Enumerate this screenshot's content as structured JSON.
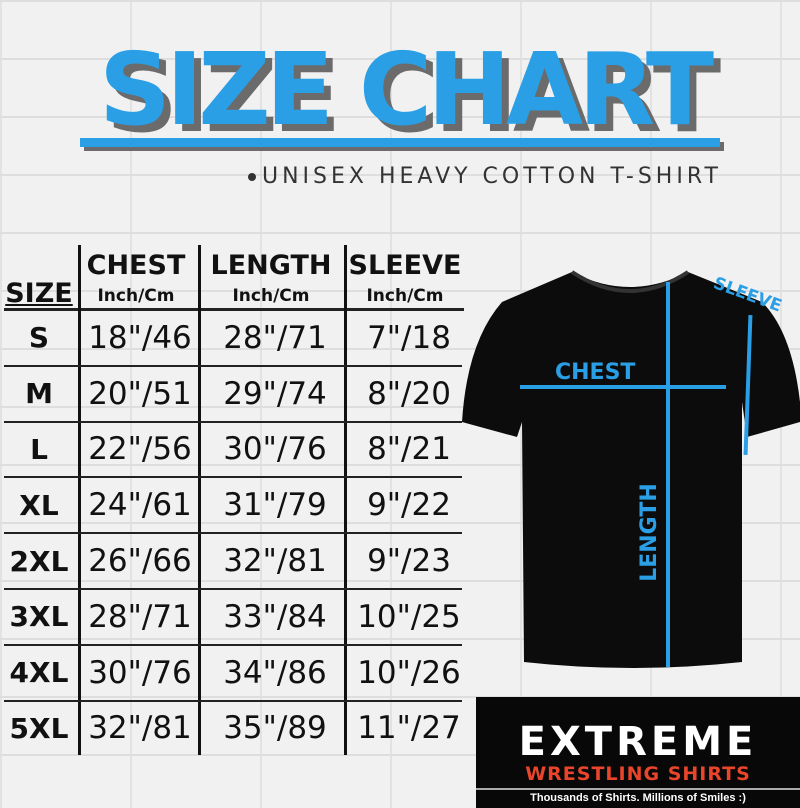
{
  "title": "SIZE CHART",
  "subtitle": "UNISEX HEAVY COTTON T-SHIRT",
  "table": {
    "headers": [
      {
        "label": "SIZE",
        "unit": ""
      },
      {
        "label": "CHEST",
        "unit": "Inch/Cm"
      },
      {
        "label": "LENGTH",
        "unit": "Inch/Cm"
      },
      {
        "label": "SLEEVE",
        "unit": "Inch/Cm"
      }
    ],
    "rows": [
      [
        "S",
        "18\"/46",
        "28\"/71",
        "7\"/18"
      ],
      [
        "M",
        "20\"/51",
        "29\"/74",
        "8\"/20"
      ],
      [
        "L",
        "22\"/56",
        "30\"/76",
        "8\"/21"
      ],
      [
        "XL",
        "24\"/61",
        "31\"/79",
        "9\"/22"
      ],
      [
        "2XL",
        "26\"/66",
        "32\"/81",
        "9\"/23"
      ],
      [
        "3XL",
        "28\"/71",
        "33\"/84",
        "10\"/25"
      ],
      [
        "4XL",
        "30\"/76",
        "34\"/86",
        "10\"/26"
      ],
      [
        "5XL",
        "32\"/81",
        "35\"/89",
        "11\"/27"
      ]
    ]
  },
  "diagram": {
    "chest": "CHEST",
    "length": "LENGTH",
    "sleeve": "SLEEVE"
  },
  "logo": {
    "main": "EXTREME",
    "sub": "WRESTLING SHIRTS",
    "tagline": "Thousands of Shirts. Millions of Smiles :)"
  },
  "colors": {
    "accent": "#2a9fe6",
    "logo_red": "#e8452a",
    "shirt": "#0c0c0c"
  }
}
